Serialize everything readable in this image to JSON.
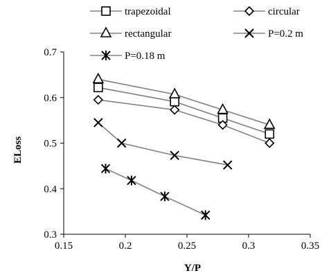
{
  "chart_data": {
    "type": "line",
    "xlabel": "Y/P",
    "ylabel": "ELoss",
    "xlim": [
      0.15,
      0.35
    ],
    "ylim": [
      0.3,
      0.7
    ],
    "x_ticks": [
      "0.15",
      "0.2",
      "0.25",
      "0.3",
      "0.35"
    ],
    "y_ticks": [
      "0.3",
      "0.4",
      "0.5",
      "0.6",
      "0.7"
    ],
    "grid": false,
    "legend_position": "top",
    "series": [
      {
        "name": "trapezoidal",
        "marker": "square",
        "color": "#000000",
        "line_color": "#808080",
        "x": [
          0.178,
          0.24,
          0.279,
          0.317
        ],
        "y": [
          0.622,
          0.591,
          0.555,
          0.52
        ]
      },
      {
        "name": "circular",
        "marker": "diamond",
        "color": "#000000",
        "line_color": "#808080",
        "x": [
          0.178,
          0.24,
          0.279,
          0.317
        ],
        "y": [
          0.595,
          0.573,
          0.54,
          0.5
        ]
      },
      {
        "name": "rectangular",
        "marker": "triangle",
        "color": "#000000",
        "line_color": "#808080",
        "x": [
          0.178,
          0.24,
          0.279,
          0.317
        ],
        "y": [
          0.64,
          0.607,
          0.573,
          0.54
        ]
      },
      {
        "name": "P=0.2 m",
        "marker": "x",
        "color": "#000000",
        "line_color": "#808080",
        "x": [
          0.178,
          0.197,
          0.24,
          0.283
        ],
        "y": [
          0.545,
          0.5,
          0.473,
          0.452
        ]
      },
      {
        "name": "P=0.18 m",
        "marker": "asterisk",
        "color": "#000000",
        "line_color": "#808080",
        "x": [
          0.184,
          0.205,
          0.232,
          0.265
        ],
        "y": [
          0.444,
          0.418,
          0.383,
          0.342
        ]
      }
    ]
  }
}
